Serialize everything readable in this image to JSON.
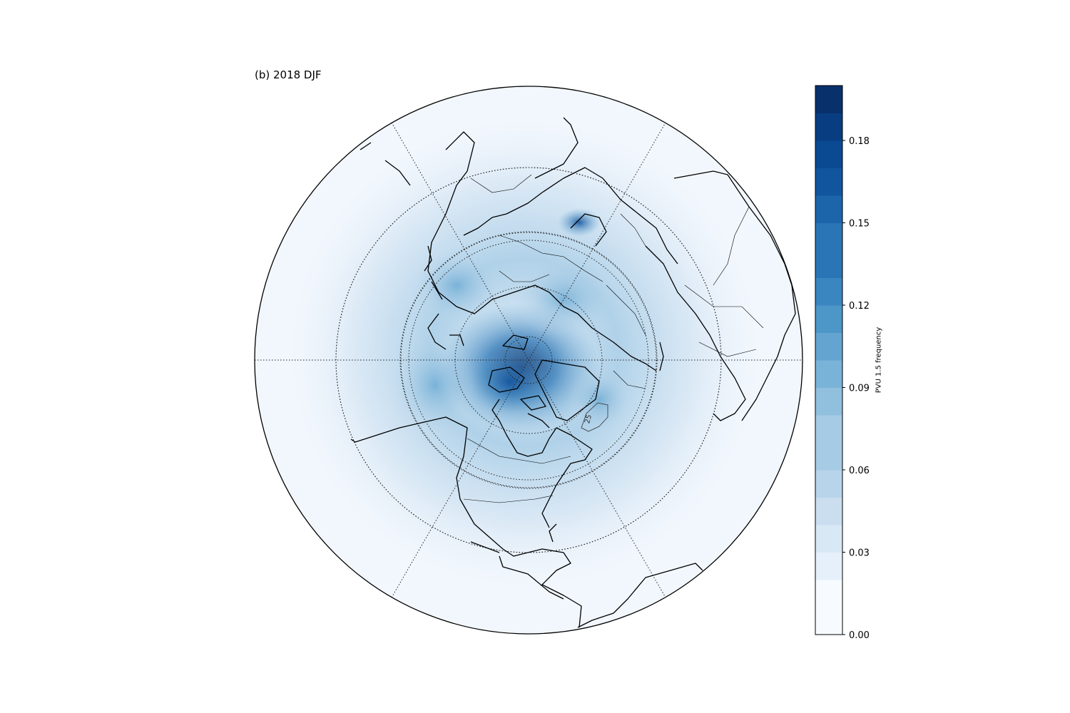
{
  "figure": {
    "title": "(b) 2018 DJF",
    "projection": "north-polar-stereographic",
    "graticule_style": "dotted"
  },
  "map": {
    "field": "PVU 1.5 frequency",
    "contour_label": "25",
    "colormap": [
      "#f7fbff",
      "#e6f0fa",
      "#d9e8f5",
      "#cadef0",
      "#b8d4ea",
      "#a6cbe4",
      "#91c0de",
      "#7ab3d8",
      "#63a5d0",
      "#4d96c8",
      "#3a86c0",
      "#2a75b5",
      "#1d65ab",
      "#12559f",
      "#0a4a93",
      "#083e81",
      "#08306b"
    ]
  },
  "colorbar": {
    "label": "PVU 1.5 frequency",
    "min": 0.0,
    "max": 0.2,
    "levels": 20,
    "ticks": [
      "0.00",
      "0.03",
      "0.06",
      "0.09",
      "0.12",
      "0.15",
      "0.18"
    ],
    "tick_values": [
      0.0,
      0.03,
      0.06,
      0.09,
      0.12,
      0.15,
      0.18
    ]
  }
}
